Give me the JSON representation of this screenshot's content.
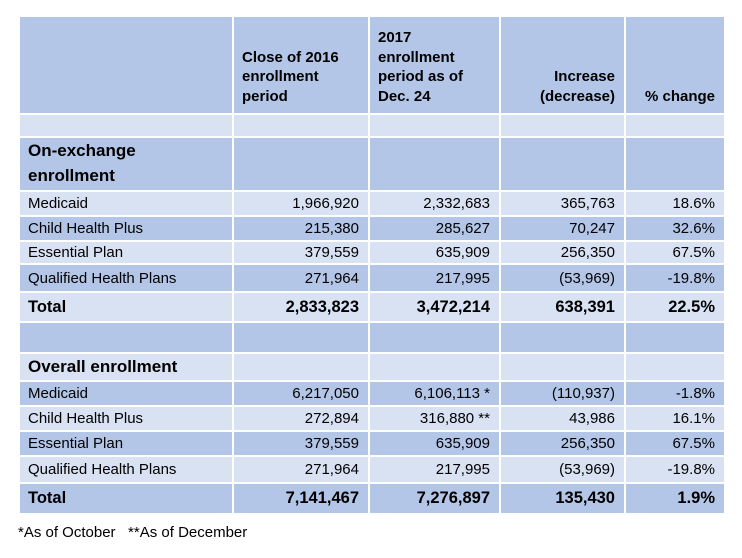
{
  "table": {
    "columns": [
      "",
      "Close of 2016 enrollment period",
      "2017 enrollment period as of Dec. 24",
      "Increase (decrease)",
      "% change"
    ],
    "rows": [
      [
        "",
        "",
        "",
        "",
        ""
      ],
      [
        "On-exchange enrollment",
        "",
        "",
        "",
        ""
      ],
      [
        "Medicaid",
        "1,966,920",
        "2,332,683",
        "365,763",
        "18.6%"
      ],
      [
        "Child Health Plus",
        "215,380",
        "285,627",
        "70,247",
        "32.6%"
      ],
      [
        "Essential Plan",
        "379,559",
        "635,909",
        "256,350",
        "67.5%"
      ],
      [
        "Qualified Health Plans",
        "271,964",
        "217,995",
        "(53,969)",
        "-19.8%"
      ],
      [
        "Total",
        "2,833,823",
        "3,472,214",
        "638,391",
        "22.5%"
      ],
      [
        "",
        "",
        "",
        "",
        ""
      ],
      [
        "Overall enrollment",
        "",
        "",
        "",
        ""
      ],
      [
        "Medicaid",
        "6,217,050",
        "6,106,113 *",
        "(110,937)",
        "-1.8%"
      ],
      [
        "Child Health Plus",
        "272,894",
        "316,880 **",
        "43,986",
        "16.1%"
      ],
      [
        "Essential Plan",
        "379,559",
        "635,909",
        "256,350",
        "67.5%"
      ],
      [
        "Qualified Health Plans",
        "271,964",
        "217,995",
        "(53,969)",
        "-19.8%"
      ],
      [
        "Total",
        "7,141,467",
        "7,276,897",
        "135,430",
        "1.9%"
      ]
    ]
  },
  "footnote": "*As of October   **As of December",
  "colors": {
    "band_dark": "#b4c6e7",
    "band_light": "#d9e2f3",
    "gridline": "#ffffff",
    "text": "#000000",
    "background": "#ffffff"
  }
}
